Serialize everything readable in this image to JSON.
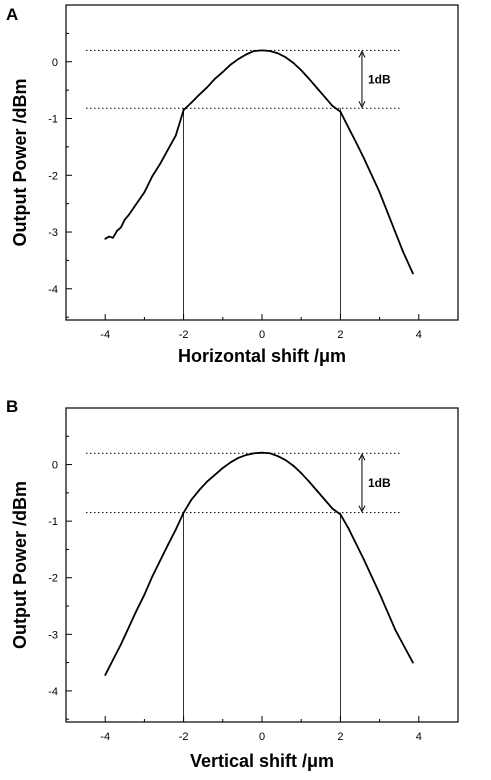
{
  "chart_data": [
    {
      "type": "line",
      "panel_label": "A",
      "xlabel": "Horizontal shift  /μm",
      "ylabel": "Output Power  /dBm",
      "xlim": [
        -5,
        5
      ],
      "ylim": [
        -4.55,
        1.0
      ],
      "xticks": [
        "-4",
        "-2",
        "0",
        "2",
        "4"
      ],
      "yticks": [
        "0",
        "-1",
        "-2",
        "-3",
        "-4"
      ],
      "grid": false,
      "series": [
        {
          "x": [
            -4.0,
            -3.9,
            -3.8,
            -3.7,
            -3.6,
            -3.5,
            -3.4,
            -3.2,
            -3.0,
            -2.8,
            -2.6,
            -2.4,
            -2.2,
            -2.0,
            -1.8,
            -1.6,
            -1.4,
            -1.2,
            -1.0,
            -0.8,
            -0.6,
            -0.4,
            -0.2,
            0.0,
            0.2,
            0.4,
            0.6,
            0.8,
            1.0,
            1.2,
            1.4,
            1.6,
            1.8,
            2.0,
            2.2,
            2.4,
            2.6,
            2.8,
            3.0,
            3.2,
            3.4,
            3.6,
            3.85
          ],
          "y": [
            -3.12,
            -3.08,
            -3.1,
            -2.98,
            -2.92,
            -2.78,
            -2.7,
            -2.5,
            -2.3,
            -2.02,
            -1.8,
            -1.55,
            -1.3,
            -0.85,
            -0.72,
            -0.58,
            -0.45,
            -0.3,
            -0.18,
            -0.05,
            0.05,
            0.13,
            0.19,
            0.2,
            0.19,
            0.15,
            0.08,
            -0.02,
            -0.15,
            -0.3,
            -0.46,
            -0.62,
            -0.78,
            -0.88,
            -1.15,
            -1.42,
            -1.7,
            -2.0,
            -2.3,
            -2.65,
            -3.0,
            -3.35,
            -3.73
          ]
        }
      ],
      "reference_lines": {
        "upper_y": 0.2,
        "lower_y": -0.82,
        "left_x": -2.0,
        "right_x": 2.0
      },
      "annotation": "1dB"
    },
    {
      "type": "line",
      "panel_label": "B",
      "xlabel": "Vertical shift  /μm",
      "ylabel": "Output Power  /dBm",
      "xlim": [
        -5,
        5
      ],
      "ylim": [
        -4.55,
        1.0
      ],
      "xticks": [
        "-4",
        "-2",
        "0",
        "2",
        "4"
      ],
      "yticks": [
        "0",
        "-1",
        "-2",
        "-3",
        "-4"
      ],
      "grid": false,
      "series": [
        {
          "x": [
            -4.0,
            -3.8,
            -3.6,
            -3.4,
            -3.2,
            -3.0,
            -2.8,
            -2.6,
            -2.4,
            -2.2,
            -2.0,
            -1.8,
            -1.6,
            -1.4,
            -1.2,
            -1.0,
            -0.8,
            -0.6,
            -0.4,
            -0.2,
            0.0,
            0.2,
            0.4,
            0.6,
            0.8,
            1.0,
            1.2,
            1.4,
            1.6,
            1.8,
            2.0,
            2.2,
            2.4,
            2.6,
            2.8,
            3.0,
            3.2,
            3.4,
            3.6,
            3.85
          ],
          "y": [
            -3.72,
            -3.45,
            -3.18,
            -2.88,
            -2.58,
            -2.3,
            -1.98,
            -1.7,
            -1.42,
            -1.15,
            -0.85,
            -0.62,
            -0.45,
            -0.3,
            -0.18,
            -0.06,
            0.04,
            0.12,
            0.17,
            0.2,
            0.21,
            0.2,
            0.15,
            0.08,
            -0.02,
            -0.15,
            -0.3,
            -0.46,
            -0.62,
            -0.78,
            -0.88,
            -1.12,
            -1.4,
            -1.68,
            -1.98,
            -2.28,
            -2.6,
            -2.92,
            -3.18,
            -3.5
          ]
        }
      ],
      "reference_lines": {
        "upper_y": 0.2,
        "lower_y": -0.85,
        "left_x": -2.0,
        "right_x": 2.0
      },
      "annotation": "1dB"
    }
  ]
}
